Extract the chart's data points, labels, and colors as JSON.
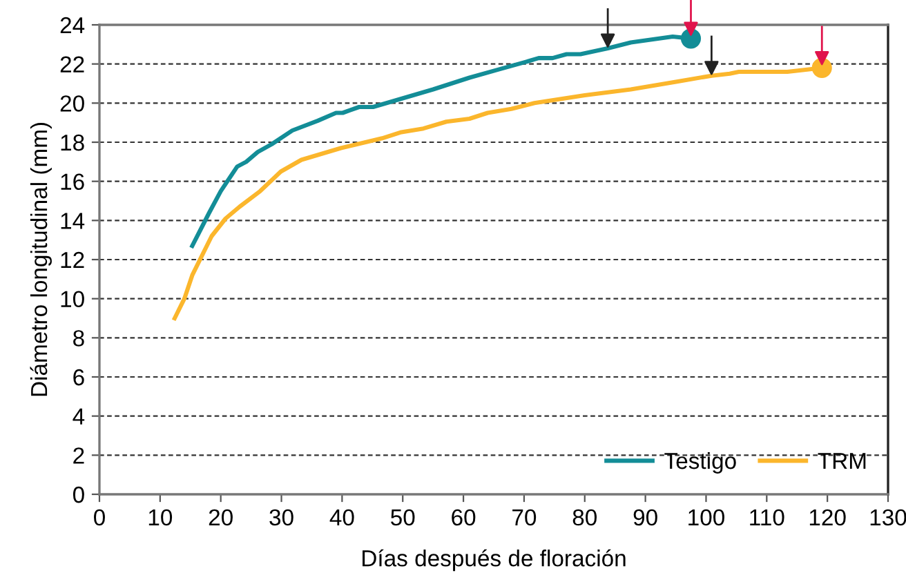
{
  "chart_data": {
    "type": "line",
    "xlabel": "Días después de floración",
    "ylabel": "Diámetro longitudinal (mm)",
    "xlim": [
      0,
      130
    ],
    "xticks": [
      0,
      10,
      20,
      30,
      40,
      50,
      60,
      70,
      80,
      90,
      100,
      110,
      120,
      130
    ],
    "ylim": [
      0,
      24
    ],
    "yticks": [
      0,
      2,
      4,
      6,
      8,
      10,
      12,
      14,
      16,
      18,
      20,
      22,
      24
    ],
    "grid": "y",
    "legend": "bottom right",
    "marker": "none",
    "line_style": "solid",
    "series": [
      {
        "name": "Testigo",
        "color": "#138d97",
        "x": [
          15.3,
          18.1,
          20.0,
          22.7,
          24.2,
          26.1,
          28.4,
          31.8,
          36,
          39,
          40.1,
          42.8,
          45.1,
          55,
          61,
          65.6,
          70.2,
          72.4,
          74.7,
          77,
          79.3,
          83.8,
          87.6,
          94.5,
          97.5
        ],
        "values": [
          12.7,
          14.4,
          15.5,
          16.75,
          17.0,
          17.5,
          17.9,
          18.6,
          19.1,
          19.5,
          19.5,
          19.8,
          19.8,
          20.7,
          21.3,
          21.7,
          22.1,
          22.3,
          22.3,
          22.5,
          22.5,
          22.8,
          23.1,
          23.4,
          23.3
        ]
      },
      {
        "name": "TRM",
        "color": "#fbb62c",
        "x": [
          12.4,
          14,
          15.3,
          18.5,
          20.8,
          23.1,
          26.5,
          29.9,
          33.3,
          39.8,
          46.6,
          49.6,
          53.4,
          57.2,
          61,
          64,
          67.9,
          71.7,
          80,
          87.6,
          95.2,
          100.9,
          103.9,
          105.4,
          113.4,
          119.1
        ],
        "values": [
          9.0,
          10.0,
          11.2,
          13.2,
          14.1,
          14.7,
          15.5,
          16.5,
          17.1,
          17.7,
          18.2,
          18.5,
          18.7,
          19.05,
          19.2,
          19.5,
          19.7,
          20.0,
          20.4,
          20.7,
          21.1,
          21.4,
          21.5,
          21.6,
          21.6,
          21.8
        ]
      },
      {
        "type": "scatter",
        "marker": "circle",
        "color": "#138d97",
        "x": [
          97.5
        ],
        "values": [
          23.3
        ]
      },
      {
        "type": "scatter",
        "marker": "circle",
        "color": "#fbb62c",
        "x": [
          119.1
        ],
        "values": [
          21.8
        ]
      },
      {
        "type": "scatter",
        "marker": "triangle",
        "color": "#222222",
        "x": [
          83.8,
          100.9
        ],
        "values": [
          23.2,
          21.8
        ]
      },
      {
        "type": "scatter",
        "marker": "triangle",
        "color": "#e0144c",
        "x": [
          97.5,
          119.1
        ],
        "values": [
          23.8,
          22.3
        ]
      }
    ]
  }
}
